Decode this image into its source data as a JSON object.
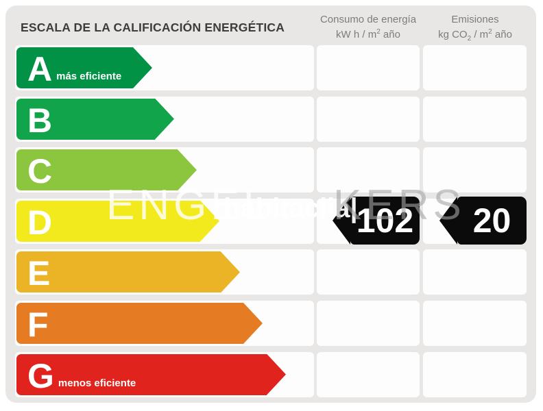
{
  "title": "ESCALA DE LA CALIFICACIÓN ENERGÉTICA",
  "columns": {
    "consumo": {
      "line1": "Consumo de energía",
      "line2_pre": "kW h / m",
      "line2_sup": "2",
      "line2_post": " año"
    },
    "emisiones": {
      "line1": "Emisiones",
      "line2_pre": "kg CO",
      "line2_sub": "2",
      "line2_mid": " / m",
      "line2_sup": "2",
      "line2_post": " año"
    }
  },
  "scale": {
    "rows": [
      {
        "letter": "A",
        "label": "más eficiente",
        "color": "#019245"
      },
      {
        "letter": "B",
        "label": "",
        "color": "#12a44b"
      },
      {
        "letter": "C",
        "label": "",
        "color": "#8cc63e"
      },
      {
        "letter": "D",
        "label": "",
        "color": "#f2ea1c"
      },
      {
        "letter": "E",
        "label": "",
        "color": "#eab426"
      },
      {
        "letter": "F",
        "label": "",
        "color": "#e57b23"
      },
      {
        "letter": "G",
        "label": "menos eficiente",
        "color": "#e0231c"
      }
    ]
  },
  "rating": {
    "letter": "D",
    "consumo_value": "102",
    "emisiones_value": "20",
    "arrow_color": "#0b0b0b"
  },
  "watermark": {
    "part1": "ENGEL",
    "part2": "habitaclia|",
    "part3": "KERS"
  },
  "chart_data": {
    "type": "bar",
    "title": "ESCALA DE LA CALIFICACIÓN ENERGÉTICA",
    "categories": [
      "A",
      "B",
      "C",
      "D",
      "E",
      "F",
      "G"
    ],
    "bar_colors": [
      "#019245",
      "#12a44b",
      "#8cc63e",
      "#f2ea1c",
      "#eab426",
      "#e57b23",
      "#e0231c"
    ],
    "annotations": [
      "A = más eficiente",
      "G = menos eficiente"
    ],
    "columns": [
      "Consumo de energía kW h / m² año",
      "Emisiones kg CO₂ / m² año"
    ],
    "rated_class": "D",
    "values": {
      "consumo_kwh_m2_ano": 102,
      "emisiones_kgco2_m2_ano": 20
    }
  }
}
